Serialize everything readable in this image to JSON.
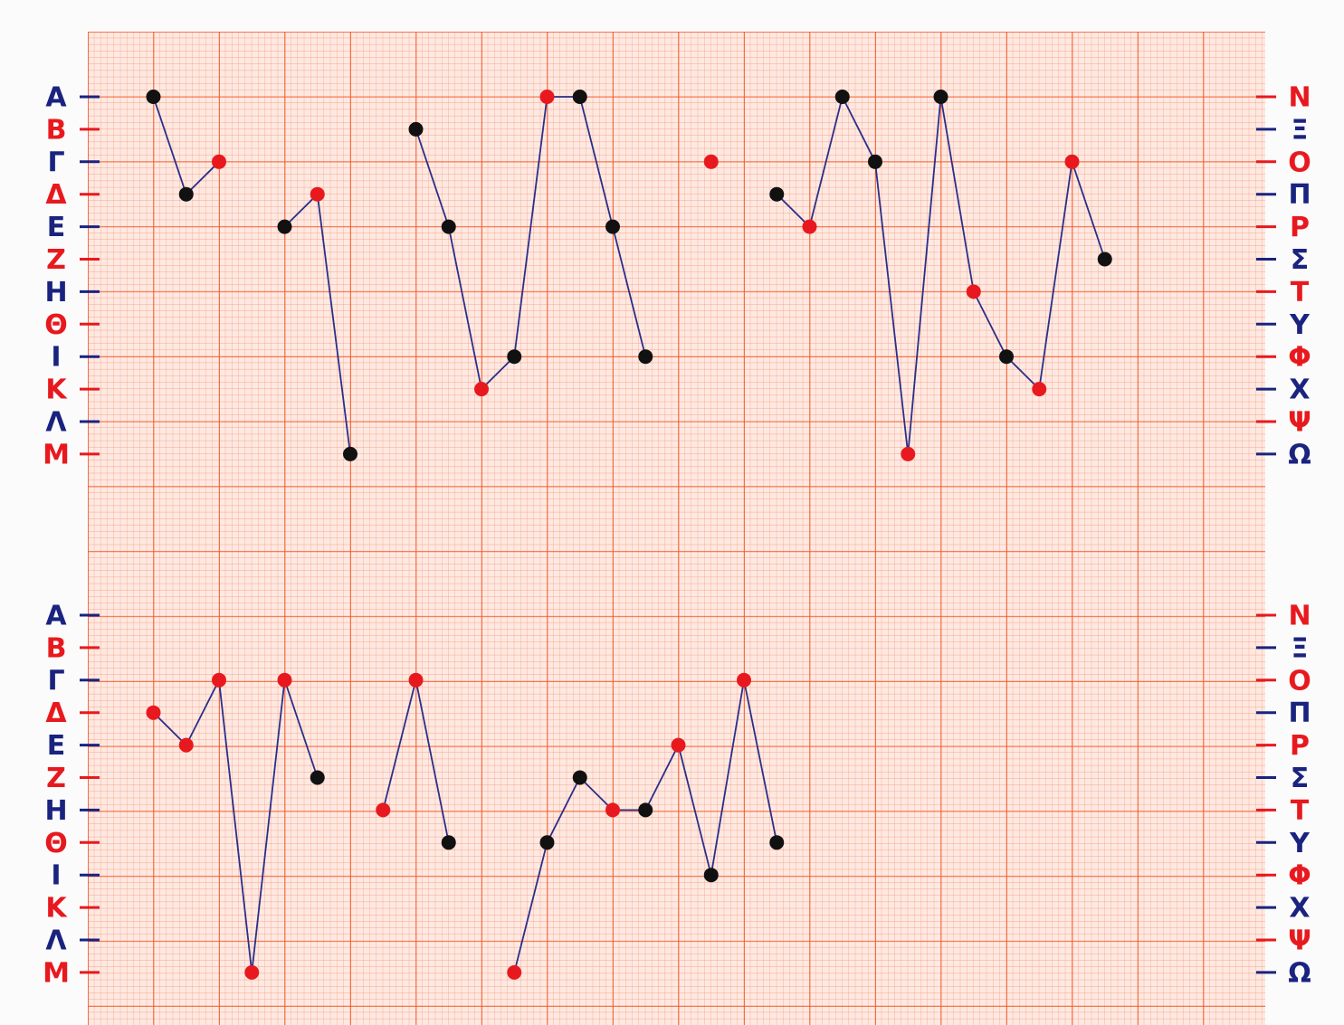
{
  "left_labels": [
    {
      "text": "Α",
      "color": "blue"
    },
    {
      "text": "Β",
      "color": "red"
    },
    {
      "text": "Γ",
      "color": "blue"
    },
    {
      "text": "Δ",
      "color": "red"
    },
    {
      "text": "Ε",
      "color": "blue"
    },
    {
      "text": "Ζ",
      "color": "red"
    },
    {
      "text": "Η",
      "color": "blue"
    },
    {
      "text": "Θ",
      "color": "red"
    },
    {
      "text": "Ι",
      "color": "blue"
    },
    {
      "text": "Κ",
      "color": "red"
    },
    {
      "text": "Λ",
      "color": "blue"
    },
    {
      "text": "Μ",
      "color": "red"
    }
  ],
  "right_labels": [
    {
      "text": "Ν",
      "color": "red"
    },
    {
      "text": "Ξ",
      "color": "blue"
    },
    {
      "text": "Ο",
      "color": "red"
    },
    {
      "text": "Π",
      "color": "blue"
    },
    {
      "text": "Ρ",
      "color": "red"
    },
    {
      "text": "Σ",
      "color": "blue"
    },
    {
      "text": "Τ",
      "color": "red"
    },
    {
      "text": "Υ",
      "color": "blue"
    },
    {
      "text": "Φ",
      "color": "red"
    },
    {
      "text": "Χ",
      "color": "blue"
    },
    {
      "text": "Ψ",
      "color": "red"
    },
    {
      "text": "Ω",
      "color": "blue"
    }
  ],
  "panels": [
    {
      "lines": [
        {
          "points": [
            {
              "col": 2,
              "row": 0,
              "color": "black"
            },
            {
              "col": 3,
              "row": 3,
              "color": "black"
            },
            {
              "col": 4,
              "row": 2,
              "color": "red"
            }
          ]
        },
        {
          "points": [
            {
              "col": 6,
              "row": 4,
              "color": "black"
            },
            {
              "col": 7,
              "row": 3,
              "color": "red"
            },
            {
              "col": 8,
              "row": 11,
              "color": "black"
            }
          ]
        },
        {
          "points": [
            {
              "col": 10,
              "row": 1,
              "color": "black"
            },
            {
              "col": 11,
              "row": 4,
              "color": "black"
            },
            {
              "col": 12,
              "row": 9,
              "color": "red"
            },
            {
              "col": 13,
              "row": 8,
              "color": "black"
            },
            {
              "col": 14,
              "row": 0,
              "color": "red"
            },
            {
              "col": 15,
              "row": 0,
              "color": "black"
            },
            {
              "col": 16,
              "row": 4,
              "color": "black"
            },
            {
              "col": 17,
              "row": 8,
              "color": "black"
            }
          ]
        },
        {
          "points": [
            {
              "col": 19,
              "row": 2,
              "color": "red"
            }
          ]
        },
        {
          "points": [
            {
              "col": 21,
              "row": 3,
              "color": "black"
            },
            {
              "col": 22,
              "row": 4,
              "color": "red"
            },
            {
              "col": 23,
              "row": 0,
              "color": "black"
            },
            {
              "col": 24,
              "row": 2,
              "color": "black"
            },
            {
              "col": 25,
              "row": 11,
              "color": "red"
            },
            {
              "col": 26,
              "row": 0,
              "color": "black"
            },
            {
              "col": 27,
              "row": 6,
              "color": "red"
            },
            {
              "col": 28,
              "row": 8,
              "color": "black"
            },
            {
              "col": 29,
              "row": 9,
              "color": "red"
            },
            {
              "col": 30,
              "row": 2,
              "color": "red"
            },
            {
              "col": 31,
              "row": 5,
              "color": "black"
            }
          ]
        }
      ]
    },
    {
      "lines": [
        {
          "points": [
            {
              "col": 2,
              "row": 3,
              "color": "red"
            },
            {
              "col": 3,
              "row": 4,
              "color": "red"
            },
            {
              "col": 4,
              "row": 2,
              "color": "red"
            },
            {
              "col": 5,
              "row": 11,
              "color": "red"
            },
            {
              "col": 6,
              "row": 2,
              "color": "red"
            },
            {
              "col": 7,
              "row": 5,
              "color": "black"
            }
          ]
        },
        {
          "points": [
            {
              "col": 9,
              "row": 6,
              "color": "red"
            },
            {
              "col": 10,
              "row": 2,
              "color": "red"
            },
            {
              "col": 11,
              "row": 7,
              "color": "black"
            }
          ]
        },
        {
          "points": [
            {
              "col": 13,
              "row": 11,
              "color": "red"
            },
            {
              "col": 14,
              "row": 7,
              "color": "black"
            },
            {
              "col": 15,
              "row": 5,
              "color": "black"
            },
            {
              "col": 16,
              "row": 6,
              "color": "red"
            },
            {
              "col": 17,
              "row": 6,
              "color": "black"
            },
            {
              "col": 18,
              "row": 4,
              "color": "red"
            },
            {
              "col": 19,
              "row": 8,
              "color": "black"
            },
            {
              "col": 20,
              "row": 2,
              "color": "red"
            },
            {
              "col": 21,
              "row": 7,
              "color": "black"
            }
          ]
        }
      ]
    }
  ]
}
